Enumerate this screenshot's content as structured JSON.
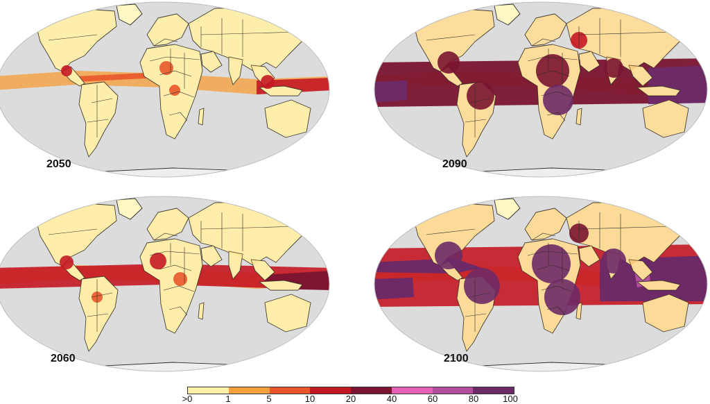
{
  "panels": [
    {
      "year": "2050",
      "intensity": 1
    },
    {
      "year": "2090",
      "intensity": 3
    },
    {
      "year": "2060",
      "intensity": 2
    },
    {
      "year": "2100",
      "intensity": 4
    }
  ],
  "legend": {
    "ticks": [
      ">0",
      "1",
      "5",
      "10",
      "20",
      "40",
      "60",
      "80",
      "100"
    ],
    "colors": [
      "#fff2a8",
      "#fdd25c",
      "#f5a140",
      "#e8562a",
      "#c41824",
      "#7a1430",
      "#e660b8",
      "#b34f9c",
      "#6e2a66"
    ]
  },
  "colors": {
    "ocean": "#dcdcdc",
    "land": "#fff7c4",
    "border": "#2a2a2a",
    "background": "#ffffff"
  }
}
